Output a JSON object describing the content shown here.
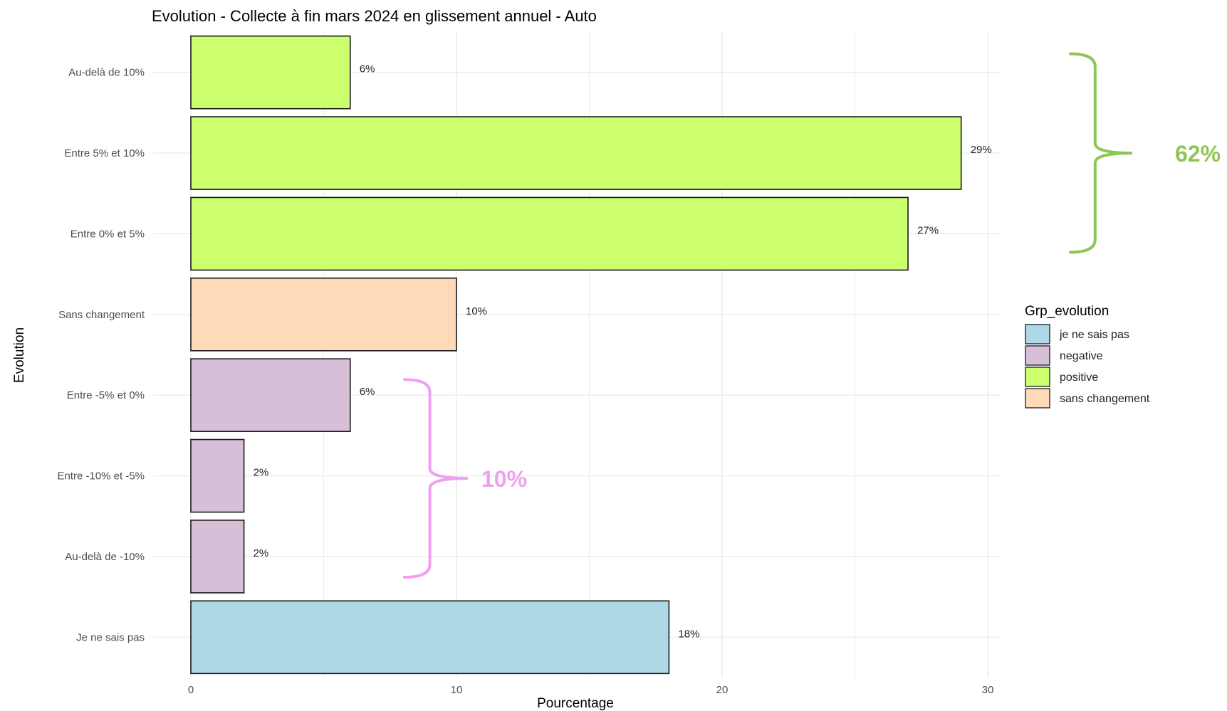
{
  "chart_data": {
    "type": "bar",
    "orientation": "horizontal",
    "title": "Evolution -  Collecte à fin mars 2024 en glissement annuel -  Auto",
    "xlabel": "Pourcentage",
    "ylabel": "Evolution",
    "xlim": [
      0,
      30.5
    ],
    "xticks": [
      0,
      10,
      20,
      30
    ],
    "grid": true,
    "categories": [
      "Au-delà de 10%",
      "Entre 5% et 10%",
      "Entre 0% et 5%",
      "Sans changement",
      "Entre -5% et 0%",
      "Entre -10% et -5%",
      "Au-delà de -10%",
      "Je ne sais pas"
    ],
    "values": [
      6,
      29,
      27,
      10,
      6,
      2,
      2,
      18
    ],
    "data_labels": [
      "6%",
      "29%",
      "27%",
      "10%",
      "6%",
      "2%",
      "2%",
      "18%"
    ],
    "groups": [
      "positive",
      "positive",
      "positive",
      "sans changement",
      "negative",
      "negative",
      "negative",
      "je ne sais pas"
    ],
    "legend": {
      "title": "Grp_evolution",
      "position": "right",
      "items": [
        {
          "label": "je ne sais pas",
          "color": "#ADD8E6"
        },
        {
          "label": "negative",
          "color": "#D8BFD8"
        },
        {
          "label": "positive",
          "color": "#CCFF6E"
        },
        {
          "label": "sans changement",
          "color": "#FFDAB9"
        }
      ]
    },
    "annotations": [
      {
        "label": "62%",
        "color": "#8DC653",
        "spans": [
          "Au-delà de 10%",
          "Entre 0% et 5%"
        ]
      },
      {
        "label": "10%",
        "color": "#F0A0F0",
        "spans": [
          "Entre -5% et 0%",
          "Au-delà de -10%"
        ]
      }
    ]
  }
}
